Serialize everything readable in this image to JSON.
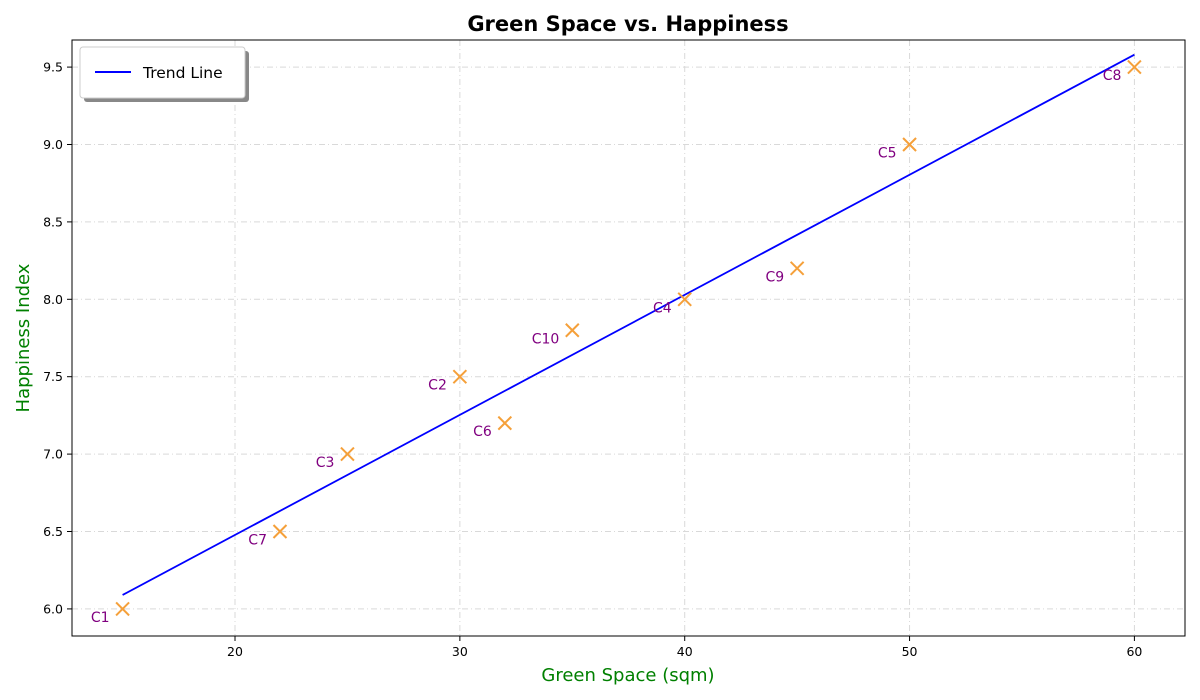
{
  "chart_data": {
    "type": "scatter",
    "title": "Green Space vs. Happiness",
    "xlabel": "Green Space (sqm)",
    "ylabel": "Happiness Index",
    "xlim": [
      12.75,
      62.25
    ],
    "ylim": [
      5.825,
      9.675
    ],
    "xticks": [
      20,
      30,
      40,
      50,
      60
    ],
    "yticks": [
      6.0,
      6.5,
      7.0,
      7.5,
      8.0,
      8.5,
      9.0,
      9.5
    ],
    "grid": true,
    "legend_position": "top-left",
    "points": [
      {
        "label": "C1",
        "x": 15,
        "y": 6.0
      },
      {
        "label": "C2",
        "x": 30,
        "y": 7.5
      },
      {
        "label": "C3",
        "x": 25,
        "y": 7.0
      },
      {
        "label": "C4",
        "x": 40,
        "y": 8.0
      },
      {
        "label": "C5",
        "x": 50,
        "y": 9.0
      },
      {
        "label": "C6",
        "x": 32,
        "y": 7.2
      },
      {
        "label": "C7",
        "x": 22,
        "y": 6.5
      },
      {
        "label": "C8",
        "x": 60,
        "y": 9.5
      },
      {
        "label": "C9",
        "x": 45,
        "y": 8.2
      },
      {
        "label": "C10",
        "x": 35,
        "y": 7.8
      }
    ],
    "trend_line": {
      "name": "Trend Line",
      "x": [
        15,
        60
      ],
      "y": [
        6.09,
        9.58
      ]
    },
    "colors": {
      "marker": "#f5a03a",
      "trend": "#0000ff",
      "point_label": "#800080",
      "axis_label": "#008000",
      "grid": "#d9d9d9"
    }
  }
}
